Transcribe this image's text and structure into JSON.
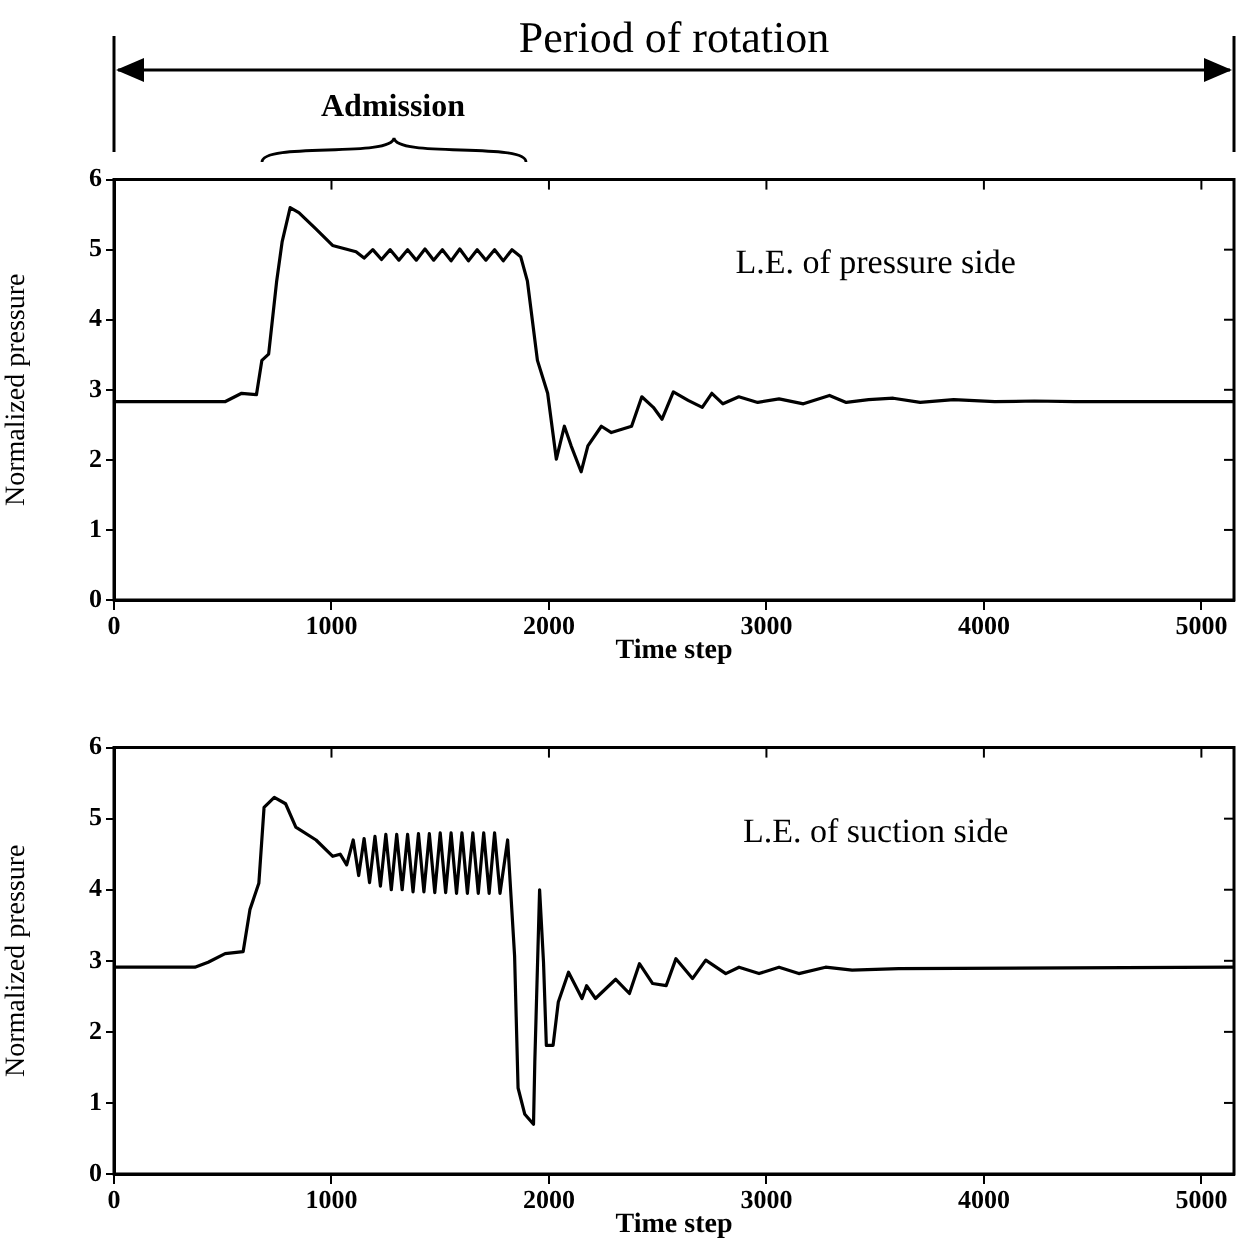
{
  "chart_data": [
    {
      "type": "line",
      "title": "Period of rotation",
      "annotations": [
        "Admission",
        "L.E. of pressure side"
      ],
      "xlabel": "Time step",
      "ylabel": "Normalized pressure",
      "xlim": [
        0,
        5150
      ],
      "xticks": [
        0,
        1000,
        2000,
        3000,
        4000,
        5000
      ],
      "ylim": [
        0,
        6
      ],
      "yticks": [
        0,
        1,
        2,
        3,
        4,
        5,
        6
      ],
      "grid": false,
      "legend": false,
      "x": [
        0,
        510,
        587,
        655,
        680,
        711,
        748,
        773,
        810,
        850,
        927,
        1005,
        1113,
        1150,
        1190,
        1230,
        1270,
        1310,
        1350,
        1390,
        1430,
        1470,
        1510,
        1550,
        1590,
        1630,
        1670,
        1710,
        1750,
        1790,
        1830,
        1870,
        1901,
        1947,
        1994,
        2034,
        2071,
        2102,
        2148,
        2179,
        2241,
        2287,
        2380,
        2427,
        2480,
        2520,
        2572,
        2640,
        2705,
        2749,
        2800,
        2873,
        2960,
        3058,
        3170,
        3290,
        3367,
        3470,
        3583,
        3707,
        3861,
        4050,
        4232,
        4417,
        5150
      ],
      "series": [
        {
          "color": "#000000",
          "values": [
            2.83,
            2.83,
            2.95,
            2.93,
            3.42,
            3.51,
            4.55,
            5.11,
            5.6,
            5.53,
            5.3,
            5.06,
            4.97,
            4.88,
            5.0,
            4.86,
            5.0,
            4.85,
            5.0,
            4.85,
            5.01,
            4.85,
            5.0,
            4.84,
            5.01,
            4.84,
            5.0,
            4.85,
            5.0,
            4.84,
            5.0,
            4.9,
            4.55,
            3.42,
            2.95,
            2.01,
            2.48,
            2.2,
            1.83,
            2.2,
            2.48,
            2.39,
            2.48,
            2.9,
            2.75,
            2.58,
            2.97,
            2.85,
            2.75,
            2.95,
            2.8,
            2.9,
            2.82,
            2.87,
            2.8,
            2.92,
            2.82,
            2.86,
            2.88,
            2.82,
            2.86,
            2.83,
            2.84,
            2.83,
            2.83
          ]
        }
      ]
    },
    {
      "type": "line",
      "annotations": [
        "L.E. of suction side"
      ],
      "xlabel": "Time step",
      "ylabel": "Normalized pressure",
      "xlim": [
        0,
        5150
      ],
      "xticks": [
        0,
        1000,
        2000,
        3000,
        4000,
        5000
      ],
      "ylim": [
        0,
        6
      ],
      "yticks": [
        0,
        1,
        2,
        3,
        4,
        5,
        6
      ],
      "grid": false,
      "legend": false,
      "x": [
        0,
        372,
        433,
        511,
        594,
        625,
        666,
        690,
        737,
        789,
        836,
        929,
        1006,
        1040,
        1070,
        1100,
        1125,
        1150,
        1175,
        1200,
        1225,
        1250,
        1275,
        1300,
        1325,
        1350,
        1375,
        1400,
        1425,
        1450,
        1475,
        1500,
        1525,
        1550,
        1575,
        1600,
        1625,
        1650,
        1675,
        1700,
        1725,
        1750,
        1775,
        1810,
        1842,
        1858,
        1889,
        1929,
        1935,
        1957,
        1975,
        1988,
        2019,
        2043,
        2090,
        2152,
        2173,
        2214,
        2307,
        2370,
        2416,
        2477,
        2539,
        2584,
        2660,
        2721,
        2813,
        2874,
        2966,
        3058,
        3149,
        3272,
        3394,
        3608,
        5150
      ],
      "series": [
        {
          "color": "#000000",
          "values": [
            2.91,
            2.91,
            2.98,
            3.1,
            3.13,
            3.72,
            4.09,
            5.16,
            5.3,
            5.21,
            4.88,
            4.7,
            4.47,
            4.5,
            4.35,
            4.7,
            4.2,
            4.72,
            4.1,
            4.75,
            4.05,
            4.78,
            4.0,
            4.78,
            4.0,
            4.78,
            3.97,
            4.79,
            3.97,
            4.79,
            3.96,
            4.8,
            3.96,
            4.8,
            3.95,
            4.8,
            3.95,
            4.8,
            3.95,
            4.8,
            3.95,
            4.8,
            3.95,
            4.7,
            3.07,
            1.21,
            0.84,
            0.7,
            1.58,
            4.0,
            2.98,
            1.81,
            1.81,
            2.42,
            2.84,
            2.47,
            2.65,
            2.47,
            2.74,
            2.54,
            2.96,
            2.68,
            2.65,
            3.03,
            2.75,
            3.01,
            2.82,
            2.91,
            2.82,
            2.91,
            2.82,
            2.91,
            2.87,
            2.89,
            2.91
          ]
        }
      ]
    }
  ]
}
